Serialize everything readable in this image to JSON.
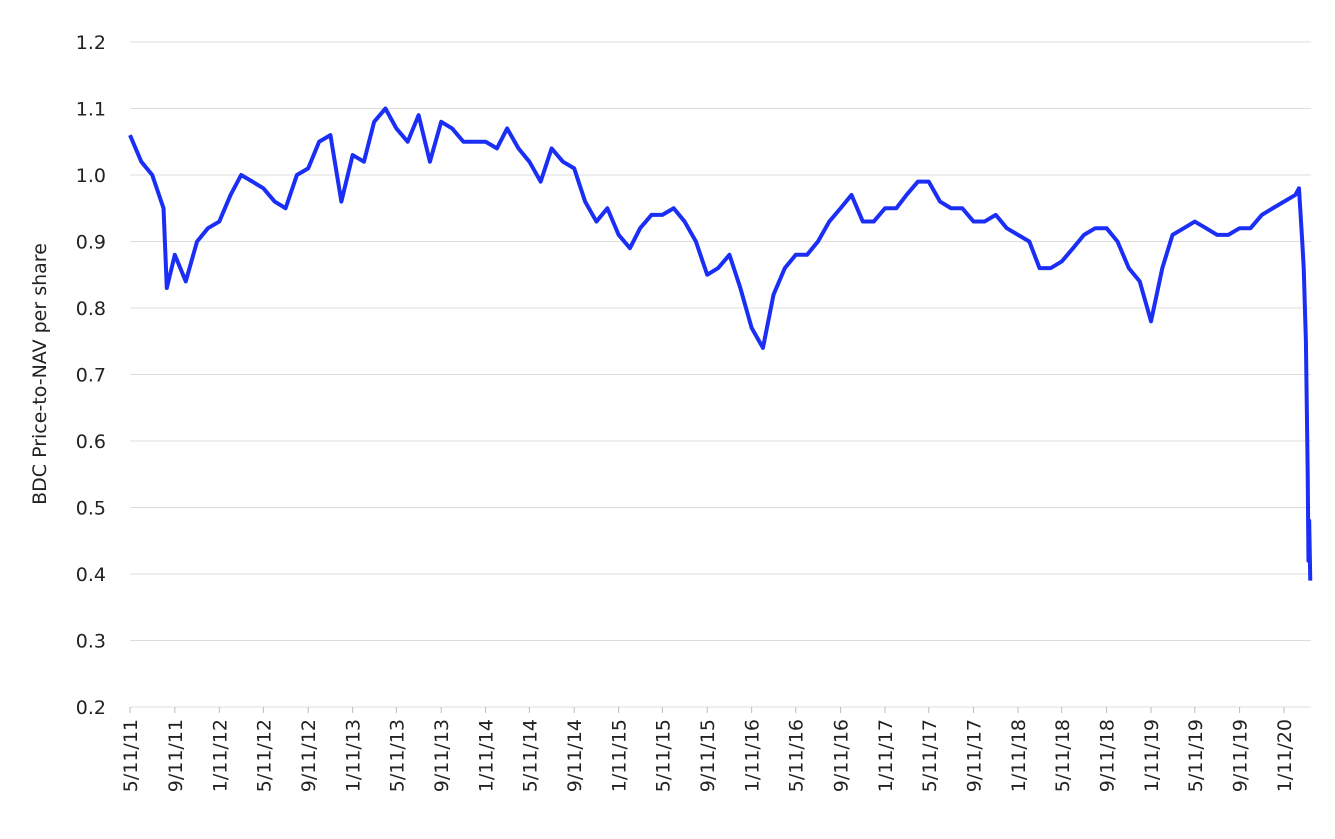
{
  "chart_data": {
    "type": "line",
    "y_axis_label": "BDC Price-to-NAV per share",
    "ylim": [
      0.2,
      1.2
    ],
    "yticks": [
      0.2,
      0.3,
      0.4,
      0.5,
      0.6,
      0.7,
      0.8,
      0.9,
      {
        "value": 1,
        "label": "1.0"
      },
      1.1,
      1.2
    ],
    "xlim": [
      "2011-05-11",
      "2020-03-25"
    ],
    "xticks": [
      {
        "value": "2011-05-11",
        "label": "5/11/11"
      },
      {
        "value": "2011-09-11",
        "label": "9/11/11"
      },
      {
        "value": "2012-01-11",
        "label": "1/11/12"
      },
      {
        "value": "2012-05-11",
        "label": "5/11/12"
      },
      {
        "value": "2012-09-11",
        "label": "9/11/12"
      },
      {
        "value": "2013-01-11",
        "label": "1/11/13"
      },
      {
        "value": "2013-05-11",
        "label": "5/11/13"
      },
      {
        "value": "2013-09-11",
        "label": "9/11/13"
      },
      {
        "value": "2014-01-11",
        "label": "1/11/14"
      },
      {
        "value": "2014-05-11",
        "label": "5/11/14"
      },
      {
        "value": "2014-09-11",
        "label": "9/11/14"
      },
      {
        "value": "2015-01-11",
        "label": "1/11/15"
      },
      {
        "value": "2015-05-11",
        "label": "5/11/15"
      },
      {
        "value": "2015-09-11",
        "label": "9/11/15"
      },
      {
        "value": "2016-01-11",
        "label": "1/11/16"
      },
      {
        "value": "2016-05-11",
        "label": "5/11/16"
      },
      {
        "value": "2016-09-11",
        "label": "9/11/16"
      },
      {
        "value": "2017-01-11",
        "label": "1/11/17"
      },
      {
        "value": "2017-05-11",
        "label": "5/11/17"
      },
      {
        "value": "2017-09-11",
        "label": "9/11/17"
      },
      {
        "value": "2018-01-11",
        "label": "1/11/18"
      },
      {
        "value": "2018-05-11",
        "label": "5/11/18"
      },
      {
        "value": "2018-09-11",
        "label": "9/11/18"
      },
      {
        "value": "2019-01-11",
        "label": "1/11/19"
      },
      {
        "value": "2019-05-11",
        "label": "5/11/19"
      },
      {
        "value": "2019-09-11",
        "label": "9/11/19"
      },
      {
        "value": "2020-01-11",
        "label": "1/11/20"
      }
    ],
    "grid": true,
    "series": [
      {
        "name": "BDC Price-to-NAV",
        "color": "#1a2ef5",
        "x": [
          "2011-05-11",
          "2011-06-11",
          "2011-07-11",
          "2011-08-11",
          "2011-08-20",
          "2011-09-11",
          "2011-10-11",
          "2011-11-11",
          "2011-12-11",
          "2012-01-11",
          "2012-02-11",
          "2012-03-11",
          "2012-04-11",
          "2012-05-11",
          "2012-06-11",
          "2012-07-11",
          "2012-08-11",
          "2012-09-11",
          "2012-10-11",
          "2012-11-11",
          "2012-12-11",
          "2013-01-11",
          "2013-02-11",
          "2013-03-11",
          "2013-04-11",
          "2013-05-11",
          "2013-06-11",
          "2013-07-11",
          "2013-08-11",
          "2013-09-11",
          "2013-10-11",
          "2013-11-11",
          "2013-12-11",
          "2014-01-11",
          "2014-02-11",
          "2014-03-11",
          "2014-04-11",
          "2014-05-11",
          "2014-06-11",
          "2014-07-11",
          "2014-08-11",
          "2014-09-11",
          "2014-10-11",
          "2014-11-11",
          "2014-12-11",
          "2015-01-11",
          "2015-02-11",
          "2015-03-11",
          "2015-04-11",
          "2015-05-11",
          "2015-06-11",
          "2015-07-11",
          "2015-08-11",
          "2015-09-11",
          "2015-10-11",
          "2015-11-11",
          "2015-12-11",
          "2016-01-11",
          "2016-02-11",
          "2016-03-11",
          "2016-04-11",
          "2016-05-11",
          "2016-06-11",
          "2016-07-11",
          "2016-08-11",
          "2016-09-11",
          "2016-10-11",
          "2016-11-11",
          "2016-12-11",
          "2017-01-11",
          "2017-02-11",
          "2017-03-11",
          "2017-04-11",
          "2017-05-11",
          "2017-06-11",
          "2017-07-11",
          "2017-08-11",
          "2017-09-11",
          "2017-10-11",
          "2017-11-11",
          "2017-12-11",
          "2018-01-11",
          "2018-02-11",
          "2018-03-11",
          "2018-04-11",
          "2018-05-11",
          "2018-06-11",
          "2018-07-11",
          "2018-08-11",
          "2018-09-11",
          "2018-10-11",
          "2018-11-11",
          "2018-12-11",
          "2019-01-11",
          "2019-02-11",
          "2019-03-11",
          "2019-04-11",
          "2019-05-11",
          "2019-06-11",
          "2019-07-11",
          "2019-08-11",
          "2019-09-11",
          "2019-10-11",
          "2019-11-11",
          "2019-12-11",
          "2020-01-11",
          "2020-02-11",
          "2020-02-21",
          "2020-03-01",
          "2020-03-05",
          "2020-03-11",
          "2020-03-16",
          "2020-03-18",
          "2020-03-20",
          "2020-03-23"
        ],
        "values": [
          1.06,
          1.02,
          1.0,
          0.95,
          0.83,
          0.88,
          0.84,
          0.9,
          0.92,
          0.93,
          0.97,
          1.0,
          0.99,
          0.98,
          0.96,
          0.95,
          1.0,
          1.01,
          1.05,
          1.06,
          0.96,
          1.03,
          1.02,
          1.08,
          1.1,
          1.07,
          1.05,
          1.09,
          1.02,
          1.08,
          1.07,
          1.05,
          1.05,
          1.05,
          1.04,
          1.07,
          1.04,
          1.02,
          0.99,
          1.04,
          1.02,
          1.01,
          0.96,
          0.93,
          0.95,
          0.91,
          0.89,
          0.92,
          0.94,
          0.94,
          0.95,
          0.93,
          0.9,
          0.85,
          0.86,
          0.88,
          0.83,
          0.77,
          0.74,
          0.82,
          0.86,
          0.88,
          0.88,
          0.9,
          0.93,
          0.95,
          0.97,
          0.93,
          0.93,
          0.95,
          0.95,
          0.97,
          0.99,
          0.99,
          0.96,
          0.95,
          0.95,
          0.93,
          0.93,
          0.94,
          0.92,
          0.91,
          0.9,
          0.86,
          0.86,
          0.87,
          0.89,
          0.91,
          0.92,
          0.92,
          0.9,
          0.86,
          0.84,
          0.78,
          0.86,
          0.91,
          0.92,
          0.93,
          0.92,
          0.91,
          0.91,
          0.92,
          0.92,
          0.94,
          0.95,
          0.96,
          0.97,
          0.98,
          0.9,
          0.86,
          0.75,
          0.55,
          0.42,
          0.48,
          0.39
        ]
      }
    ]
  }
}
